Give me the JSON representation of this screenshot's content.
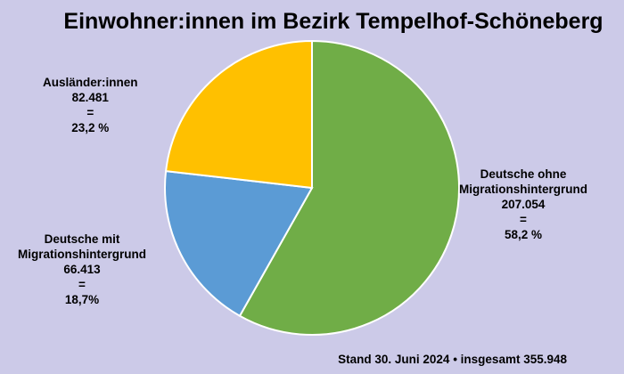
{
  "chart_data": {
    "type": "pie",
    "title": "Einwohner:innen im Bezirk Tempelhof-Schöneberg",
    "slices": [
      {
        "name_lines": [
          "Deutsche ohne",
          "Migrationshintergrund"
        ],
        "value": 207054,
        "value_label": "207.054",
        "eq": "=",
        "percent": 58.2,
        "percent_label": "58,2 %",
        "color": "#70ad47"
      },
      {
        "name_lines": [
          "Deutsche mit",
          "Migrationshintergrund"
        ],
        "value": 66413,
        "value_label": "66.413",
        "eq": "=",
        "percent": 18.7,
        "percent_label": "18,7%",
        "color": "#5b9bd5"
      },
      {
        "name_lines": [
          "Ausländer:innen"
        ],
        "value": 82481,
        "value_label": "82.481",
        "eq": "=",
        "percent": 23.2,
        "percent_label": "23,2 %",
        "color": "#ffc000"
      }
    ],
    "footer": "Stand 30. Juni 2024 • insgesamt 355.948",
    "start_angle_deg": 0,
    "direction": "clockwise"
  }
}
